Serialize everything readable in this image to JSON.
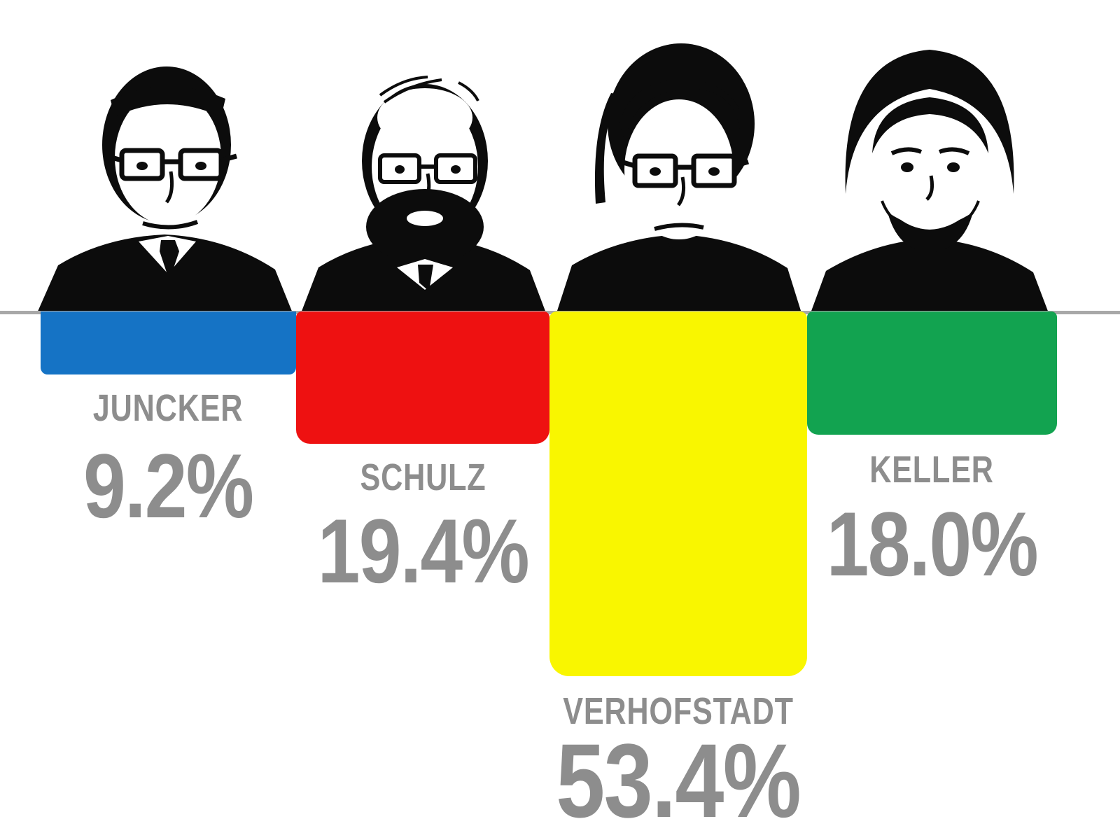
{
  "chart_data": {
    "type": "bar",
    "orientation": "downward-hanging",
    "title": "",
    "categories": [
      "JUNCKER",
      "SCHULZ",
      "VERHOFSTADT",
      "KELLER"
    ],
    "values": [
      9.2,
      19.4,
      53.4,
      18.0
    ],
    "value_labels": [
      "9.2%",
      "19.4%",
      "53.4%",
      "18.0%"
    ],
    "unit": "%",
    "series": [
      {
        "name": "JUNCKER",
        "value": 9.2,
        "color": "#1573c5"
      },
      {
        "name": "SCHULZ",
        "value": 19.4,
        "color": "#ee1111"
      },
      {
        "name": "VERHOFSTADT",
        "value": 53.4,
        "color": "#f9f600"
      },
      {
        "name": "KELLER",
        "value": 18.0,
        "color": "#12a350"
      }
    ],
    "bar_colors": [
      "#1573c5",
      "#ee1111",
      "#f9f600",
      "#12a350"
    ],
    "baseline_value": 0,
    "baseline_color": "#a8a8a8",
    "label_color": "#8d8d8d",
    "grid": "off",
    "legend": "none",
    "annotations": "four black-and-white portrait illustrations of the candidates sit above the baseline, one over each bar"
  }
}
